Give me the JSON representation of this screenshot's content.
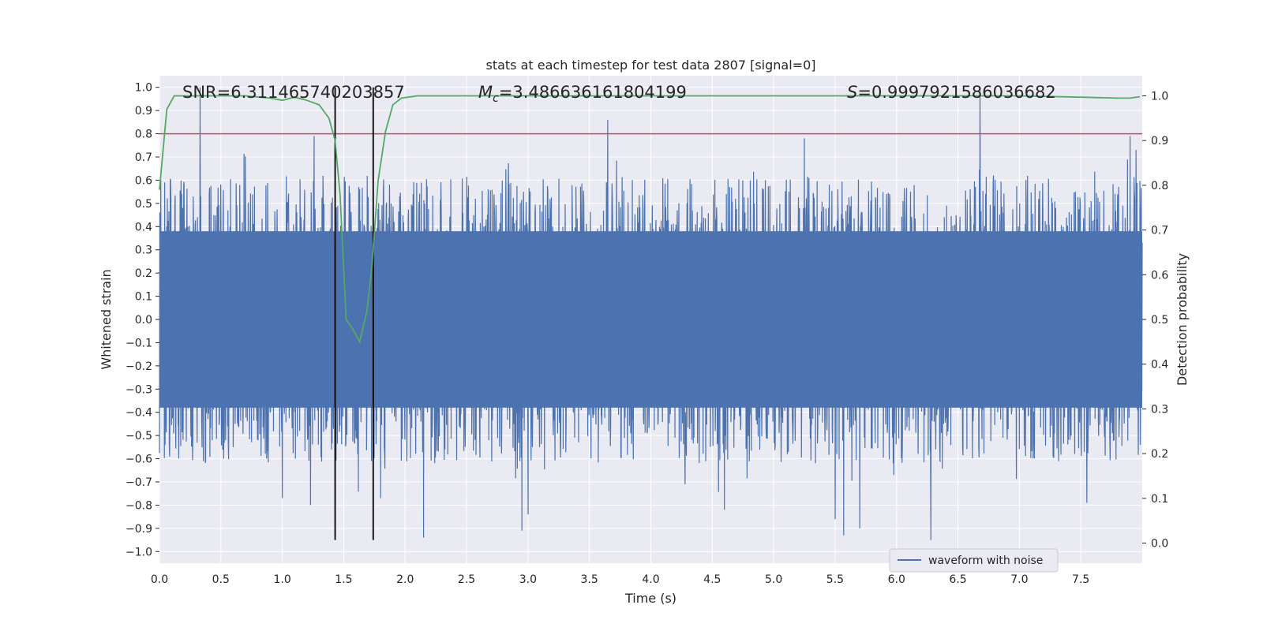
{
  "chart_data": {
    "type": "line",
    "title": "stats at each timestep for test data 2807 [signal=0]",
    "xlabel": "Time (s)",
    "ylabel": "Whitened strain",
    "y2label": "Detection probability",
    "xlim": [
      0.0,
      8.0
    ],
    "ylim": [
      -1.05,
      1.05
    ],
    "y2lim": [
      -0.045,
      1.045
    ],
    "xticks": [
      "0.0",
      "0.5",
      "1.0",
      "1.5",
      "2.0",
      "2.5",
      "3.0",
      "3.5",
      "4.0",
      "4.5",
      "5.0",
      "5.5",
      "6.0",
      "6.5",
      "7.0",
      "7.5"
    ],
    "yticks": [
      "1.0",
      "0.9",
      "0.8",
      "0.7",
      "0.6",
      "0.5",
      "0.4",
      "0.3",
      "0.2",
      "0.1",
      "0.0",
      "−0.1",
      "−0.2",
      "−0.3",
      "−0.4",
      "−0.5",
      "−0.6",
      "−0.7",
      "−0.8",
      "−0.9",
      "−1.0"
    ],
    "y2ticks": [
      "1.0",
      "0.9",
      "0.8",
      "0.7",
      "0.6",
      "0.5",
      "0.4",
      "0.3",
      "0.2",
      "0.1",
      "0.0"
    ],
    "grid": true,
    "legend": {
      "placement": "lower-center-right",
      "entries": [
        "waveform with noise"
      ]
    },
    "annotations": {
      "snr": "SNR=6.311465740203857",
      "mc_symbol": "M",
      "mc_sub": "c",
      "mc_value": "=3.486636161804199",
      "s_symbol": "S",
      "s_value": "=0.9997921586036682"
    },
    "threshold": {
      "value": 0.8,
      "axis": "left",
      "color": "#c44e52"
    },
    "vlines": [
      1.43,
      1.74
    ],
    "waveform": {
      "name": "waveform with noise",
      "color": "#4c72b0",
      "t_start": 0.0,
      "t_end": 8.0,
      "noise_band": [
        -0.38,
        0.38
      ],
      "peaks": [
        [
          0.33,
          1.0
        ],
        [
          0.32,
          -0.38
        ],
        [
          1.26,
          0.79
        ],
        [
          1.43,
          0.7
        ],
        [
          1.0,
          -0.77
        ],
        [
          1.23,
          -0.8
        ],
        [
          1.43,
          -0.93
        ],
        [
          1.8,
          -0.77
        ],
        [
          2.15,
          -0.94
        ],
        [
          2.95,
          -0.91
        ],
        [
          3.0,
          -0.84
        ],
        [
          3.65,
          0.86
        ],
        [
          4.6,
          -0.82
        ],
        [
          5.5,
          -0.86
        ],
        [
          5.57,
          -0.93
        ],
        [
          5.7,
          -0.9
        ],
        [
          6.28,
          -0.95
        ],
        [
          6.68,
          1.0
        ],
        [
          7.55,
          -0.79
        ],
        [
          7.9,
          0.79
        ],
        [
          7.95,
          0.73
        ],
        [
          5.25,
          0.78
        ]
      ]
    },
    "series": [
      {
        "name": "detection probability",
        "axis": "right",
        "color": "#55a868",
        "x": [
          0.0,
          0.06,
          0.12,
          0.3,
          0.5,
          0.7,
          0.9,
          1.0,
          1.1,
          1.2,
          1.3,
          1.38,
          1.43,
          1.47,
          1.52,
          1.57,
          1.63,
          1.69,
          1.73,
          1.78,
          1.84,
          1.9,
          1.97,
          2.1,
          2.5,
          3.0,
          3.5,
          4.0,
          4.5,
          5.0,
          5.5,
          6.0,
          6.5,
          7.0,
          7.5,
          7.8,
          7.9,
          7.98
        ],
        "y": [
          0.79,
          0.97,
          1.0,
          1.0,
          1.0,
          1.0,
          0.995,
          0.99,
          0.997,
          0.99,
          0.98,
          0.95,
          0.9,
          0.78,
          0.5,
          0.48,
          0.45,
          0.52,
          0.62,
          0.81,
          0.92,
          0.98,
          0.995,
          1.0,
          1.0,
          1.0,
          1.0,
          1.0,
          1.0,
          1.0,
          1.0,
          1.0,
          1.0,
          1.0,
          0.997,
          0.995,
          0.995,
          0.998
        ]
      }
    ]
  }
}
